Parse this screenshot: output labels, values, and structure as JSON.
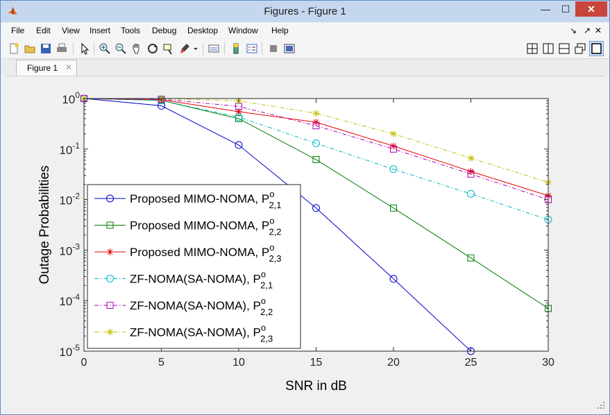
{
  "window": {
    "title": "Figures - Figure 1"
  },
  "window_buttons": {
    "minimize": "—",
    "maximize": "☐",
    "close": "✕"
  },
  "menu": [
    "File",
    "Edit",
    "View",
    "Insert",
    "Tools",
    "Debug",
    "Desktop",
    "Window",
    "Help"
  ],
  "menu_right": {
    "dock": "↘",
    "undock": "↗",
    "close": "✕"
  },
  "tabs": [
    {
      "label": "Figure 1",
      "close": "✕"
    }
  ],
  "icons": [
    "new-figure-icon",
    "open-file-icon",
    "save-icon",
    "print-icon",
    "select-arrow-icon",
    "zoom-in-icon",
    "zoom-out-icon",
    "pan-hand-icon",
    "rotate-3d-icon",
    "data-cursor-icon",
    "brush-icon",
    "brush-dropdown-icon",
    "link-plot-icon",
    "colorbar-icon",
    "legend-icon",
    "hide-plot-tools-icon",
    "show-plot-tools-icon",
    "tile-grid-icon",
    "tile-left-right-icon",
    "tile-top-bottom-icon",
    "float-icon",
    "maximize-icon"
  ],
  "chart_data": {
    "type": "line",
    "title": "",
    "xlabel": "SNR in dB",
    "ylabel": "Outage Probabilities",
    "yscale": "log",
    "xlim": [
      0,
      30
    ],
    "ylim": [
      1e-05,
      1
    ],
    "xticks": [
      0,
      5,
      10,
      15,
      20,
      25,
      30
    ],
    "xtick_labels": [
      "0",
      "5",
      "10",
      "15",
      "20",
      "25",
      "30"
    ],
    "yticks": [
      1e-05,
      0.0001,
      0.001,
      0.01,
      0.1,
      1
    ],
    "ytick_labels": [
      {
        "base": "10",
        "exp": "-5"
      },
      {
        "base": "10",
        "exp": "-4"
      },
      {
        "base": "10",
        "exp": "-3"
      },
      {
        "base": "10",
        "exp": "-2"
      },
      {
        "base": "10",
        "exp": "-1"
      },
      {
        "base": "10",
        "exp": "0"
      }
    ],
    "grid": false,
    "legend_position": "bottom-left",
    "x": [
      0,
      5,
      10,
      15,
      20,
      25,
      30
    ],
    "series": [
      {
        "name": "Proposed MIMO-NOMA, P",
        "sup": "o",
        "sub": "2,1",
        "color": "#0000cc",
        "dash": "solid",
        "marker": "circle",
        "values": [
          1.0,
          0.72,
          0.12,
          0.0068,
          0.00027,
          1e-05,
          null
        ]
      },
      {
        "name": "Proposed MIMO-NOMA, P",
        "sup": "o",
        "sub": "2,2",
        "color": "#007a00",
        "dash": "solid",
        "marker": "square",
        "values": [
          1.0,
          0.92,
          0.4,
          0.062,
          0.0068,
          0.0007,
          7e-05
        ]
      },
      {
        "name": "Proposed MIMO-NOMA, P",
        "sup": "o",
        "sub": "2,3",
        "color": "#e60000",
        "dash": "solid",
        "marker": "asterisk",
        "values": [
          1.0,
          0.95,
          0.55,
          0.34,
          0.115,
          0.036,
          0.012
        ]
      },
      {
        "name": "ZF-NOMA(SA-NOMA), P",
        "sup": "o",
        "sub": "2,1",
        "color": "#00b8c4",
        "dash": "dashdot",
        "marker": "circle",
        "values": [
          1.0,
          0.92,
          0.43,
          0.13,
          0.04,
          0.013,
          0.004
        ]
      },
      {
        "name": "ZF-NOMA(SA-NOMA), P",
        "sup": "o",
        "sub": "2,2",
        "color": "#b000b8",
        "dash": "dashdot",
        "marker": "square",
        "values": [
          1.0,
          0.97,
          0.7,
          0.29,
          0.1,
          0.032,
          0.01
        ]
      },
      {
        "name": "ZF-NOMA(SA-NOMA), P",
        "sup": "o",
        "sub": "2,3",
        "color": "#bfbf00",
        "dash": "dashdot",
        "marker": "asterisk",
        "values": [
          1.0,
          1.0,
          0.9,
          0.51,
          0.2,
          0.066,
          0.022
        ]
      }
    ]
  }
}
